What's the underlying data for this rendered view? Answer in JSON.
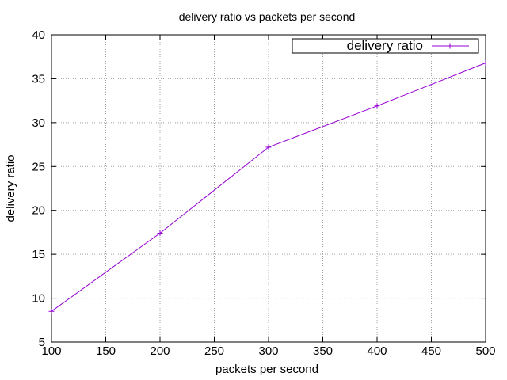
{
  "chart_data": {
    "type": "line",
    "title": "delivery ratio vs packets per second",
    "xlabel": "packets per second",
    "ylabel": "delivery ratio",
    "xlim": [
      100,
      500
    ],
    "ylim": [
      5,
      40
    ],
    "xticks": [
      100,
      150,
      200,
      250,
      300,
      350,
      400,
      450,
      500
    ],
    "yticks": [
      5,
      10,
      15,
      20,
      25,
      30,
      35,
      40
    ],
    "grid": true,
    "legend_position": "top-right",
    "series": [
      {
        "name": "delivery ratio",
        "color": "#9400d3",
        "marker": "plus",
        "x": [
          100,
          200,
          300,
          400,
          500
        ],
        "y": [
          8.5,
          17.4,
          27.2,
          31.9,
          36.8
        ]
      }
    ]
  }
}
